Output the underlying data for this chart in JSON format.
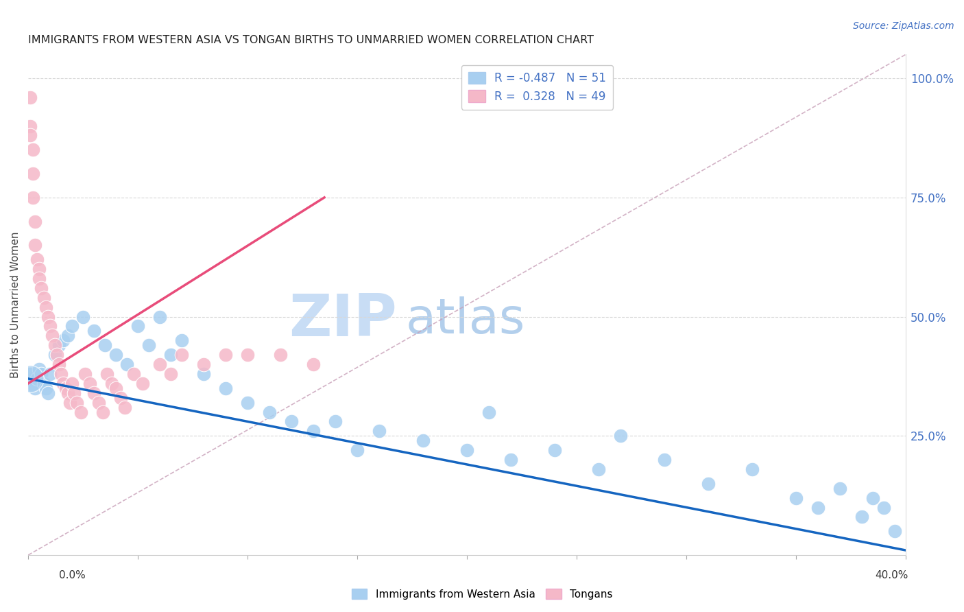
{
  "title": "IMMIGRANTS FROM WESTERN ASIA VS TONGAN BIRTHS TO UNMARRIED WOMEN CORRELATION CHART",
  "source": "Source: ZipAtlas.com",
  "ylabel": "Births to Unmarried Women",
  "legend_blue_label": "Immigrants from Western Asia",
  "legend_pink_label": "Tongans",
  "R_blue": -0.487,
  "N_blue": 51,
  "R_pink": 0.328,
  "N_pink": 49,
  "blue_color": "#a8cff0",
  "pink_color": "#f5b8c8",
  "blue_line_color": "#1565c0",
  "pink_line_color": "#e84c7a",
  "ref_line_color": "#c8a0b8",
  "grid_color": "#d8d8d8",
  "title_color": "#222222",
  "right_axis_color": "#4472c4",
  "xlim_max": 0.4,
  "ylim_max": 1.05,
  "blue_scatter_x": [
    0.001,
    0.002,
    0.003,
    0.004,
    0.005,
    0.006,
    0.007,
    0.008,
    0.009,
    0.01,
    0.012,
    0.014,
    0.016,
    0.018,
    0.02,
    0.025,
    0.03,
    0.035,
    0.04,
    0.045,
    0.05,
    0.055,
    0.06,
    0.065,
    0.07,
    0.08,
    0.09,
    0.1,
    0.11,
    0.12,
    0.13,
    0.14,
    0.15,
    0.16,
    0.18,
    0.2,
    0.21,
    0.22,
    0.24,
    0.26,
    0.27,
    0.29,
    0.31,
    0.33,
    0.35,
    0.36,
    0.37,
    0.38,
    0.385,
    0.39,
    0.395
  ],
  "blue_scatter_y": [
    0.38,
    0.36,
    0.35,
    0.37,
    0.39,
    0.38,
    0.36,
    0.35,
    0.34,
    0.38,
    0.42,
    0.44,
    0.45,
    0.46,
    0.48,
    0.5,
    0.47,
    0.44,
    0.42,
    0.4,
    0.48,
    0.44,
    0.5,
    0.42,
    0.45,
    0.38,
    0.35,
    0.32,
    0.3,
    0.28,
    0.26,
    0.28,
    0.22,
    0.26,
    0.24,
    0.22,
    0.3,
    0.2,
    0.22,
    0.18,
    0.25,
    0.2,
    0.15,
    0.18,
    0.12,
    0.1,
    0.14,
    0.08,
    0.12,
    0.1,
    0.05
  ],
  "pink_scatter_x": [
    0.001,
    0.001,
    0.001,
    0.002,
    0.002,
    0.002,
    0.003,
    0.003,
    0.004,
    0.005,
    0.005,
    0.006,
    0.007,
    0.008,
    0.009,
    0.01,
    0.011,
    0.012,
    0.013,
    0.014,
    0.015,
    0.016,
    0.017,
    0.018,
    0.019,
    0.02,
    0.021,
    0.022,
    0.024,
    0.026,
    0.028,
    0.03,
    0.032,
    0.034,
    0.036,
    0.038,
    0.04,
    0.042,
    0.044,
    0.048,
    0.052,
    0.06,
    0.065,
    0.07,
    0.08,
    0.09,
    0.1,
    0.115,
    0.13
  ],
  "pink_scatter_y": [
    0.96,
    0.9,
    0.88,
    0.85,
    0.8,
    0.75,
    0.7,
    0.65,
    0.62,
    0.6,
    0.58,
    0.56,
    0.54,
    0.52,
    0.5,
    0.48,
    0.46,
    0.44,
    0.42,
    0.4,
    0.38,
    0.36,
    0.35,
    0.34,
    0.32,
    0.36,
    0.34,
    0.32,
    0.3,
    0.38,
    0.36,
    0.34,
    0.32,
    0.3,
    0.38,
    0.36,
    0.35,
    0.33,
    0.31,
    0.38,
    0.36,
    0.4,
    0.38,
    0.42,
    0.4,
    0.42,
    0.42,
    0.42,
    0.4
  ]
}
